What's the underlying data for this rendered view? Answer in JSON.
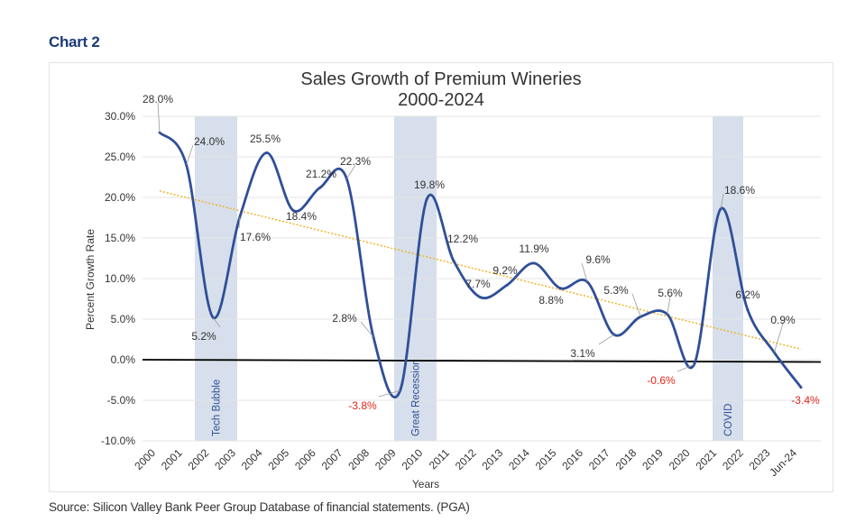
{
  "heading": "Chart 2",
  "source": "Source: Silicon Valley Bank Peer Group Database of financial statements. (PGA)",
  "chart_data": {
    "type": "line",
    "title": "Sales Growth of Premium Wineries",
    "subtitle": "2000-2024",
    "xlabel": "Years",
    "ylabel": "Percent Growth Rate",
    "ylim": [
      -10,
      30
    ],
    "yticks": [
      "30.0%",
      "25.0%",
      "20.0%",
      "15.0%",
      "10.0%",
      "5.0%",
      "0.0%",
      "-5.0%",
      "-10.0%"
    ],
    "ytick_values": [
      30,
      25,
      20,
      15,
      10,
      5,
      0,
      -5,
      -10
    ],
    "grid": true,
    "categories": [
      "2000",
      "2001",
      "2002",
      "2003",
      "2004",
      "2005",
      "2006",
      "2007",
      "2008",
      "2009",
      "2010",
      "2011",
      "2012",
      "2013",
      "2014",
      "2015",
      "2016",
      "2017",
      "2018",
      "2019",
      "2020",
      "2021",
      "2022",
      "2023",
      "Jun-24"
    ],
    "values": [
      28.0,
      24.0,
      5.2,
      17.6,
      25.5,
      18.4,
      21.2,
      22.3,
      2.8,
      -3.8,
      19.8,
      12.2,
      7.7,
      9.2,
      11.9,
      8.8,
      9.6,
      3.1,
      5.3,
      5.6,
      -0.6,
      18.6,
      6.2,
      0.9,
      -3.4
    ],
    "data_labels": [
      "28.0%",
      "24.0%",
      "5.2%",
      "17.6%",
      "25.5%",
      "18.4%",
      "21.2%",
      "22.3%",
      "2.8%",
      "-3.8%",
      "19.8%",
      "12.2%",
      "7.7%",
      "9.2%",
      "11.9%",
      "8.8%",
      "9.6%",
      "3.1%",
      "5.3%",
      "5.6%",
      "-0.6%",
      "18.6%",
      "6.2%",
      "0.9%",
      "-3.4%"
    ],
    "trendline": {
      "type": "linear",
      "start": 20.8,
      "end": 1.3,
      "color": "#f0b429"
    },
    "shaded_periods": [
      {
        "label": "Tech Bubble",
        "from": "2001",
        "to": "2003"
      },
      {
        "label": "Great Recession",
        "from": "2009",
        "to": "2010"
      },
      {
        "label": "COVID",
        "from": "2021",
        "to": "2022"
      }
    ],
    "colors": {
      "line": "#2f4f98",
      "band": "#d6dfeb",
      "band_text": "#2f4f98",
      "negative_label": "#e8241c",
      "label": "#333333",
      "zero_line": "#000000"
    }
  }
}
